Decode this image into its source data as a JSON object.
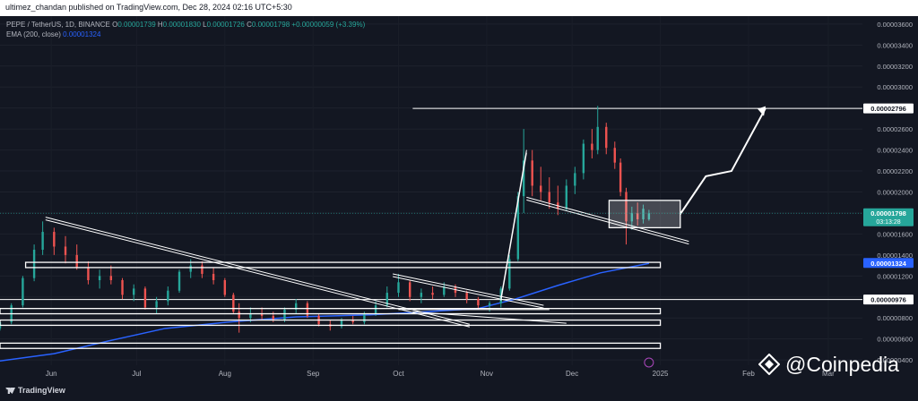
{
  "publisher_line": "ultimez_chandan published on TradingView.com, Dec 28, 2024 02:16 UTC+5:30",
  "legend": {
    "symbol": "PEPE / TetherUS, 1D, BINANCE",
    "open_label": "O",
    "open": "0.00001739",
    "high_label": "H",
    "high": "0.00001830",
    "low_label": "L",
    "low": "0.00001726",
    "close_label": "C",
    "close": "0.00001798",
    "change": "+0.00000059 (+3.39%)",
    "ema_label": "EMA (200, close)",
    "ema_value": "0.00001324"
  },
  "footer": {
    "brand": "TradingView",
    "watermark": "@Coinpedia"
  },
  "colors": {
    "background": "#131722",
    "up": "#26a69a",
    "down": "#ef5350",
    "ema": "#2962ff",
    "text": "#b2b5be",
    "white": "#ffffff"
  },
  "chart_data": {
    "type": "candlestick",
    "y_range": [
      3.5e-06,
      3.65e-05
    ],
    "y_ticks": [
      "0.00003600",
      "0.00003400",
      "0.00003200",
      "0.00003000",
      "0.00002800",
      "0.00002600",
      "0.00002400",
      "0.00002200",
      "0.00002000",
      "0.00001800",
      "0.00001600",
      "0.00001400",
      "0.00001200",
      "0.00001000",
      "0.00000800",
      "0.00000600",
      "0.00000400"
    ],
    "x_labels": [
      "Jun",
      "Jul",
      "Aug",
      "Sep",
      "Oct",
      "Nov",
      "Dec",
      "2025",
      "Feb",
      "Mar"
    ],
    "x_range": [
      "2024-05-13",
      "2025-03-12"
    ],
    "price_labels": [
      {
        "text": "0.00002796",
        "value": 2.796e-05,
        "style": "white"
      },
      {
        "text": "0.00001798",
        "value": 1.798e-05,
        "style": "green",
        "countdown": "03:13:28"
      },
      {
        "text": "0.00001324",
        "value": 1.324e-05,
        "style": "blue"
      },
      {
        "text": "0.00000976",
        "value": 9.76e-06,
        "style": "white"
      }
    ],
    "horizontal_lines": [
      2.796e-05,
      9.76e-06
    ],
    "ema_200": [
      [
        "2024-05-13",
        3.9e-06
      ],
      [
        "2024-06-01",
        4.6e-06
      ],
      [
        "2024-06-20",
        5.8e-06
      ],
      [
        "2024-07-10",
        7e-06
      ],
      [
        "2024-08-01",
        7.6e-06
      ],
      [
        "2024-08-25",
        8.1e-06
      ],
      [
        "2024-09-20",
        8.3e-06
      ],
      [
        "2024-10-10",
        8.6e-06
      ],
      [
        "2024-10-28",
        8.9e-06
      ],
      [
        "2024-11-10",
        9.8e-06
      ],
      [
        "2024-11-25",
        1.11e-05
      ],
      [
        "2024-12-10",
        1.23e-05
      ],
      [
        "2024-12-27",
        1.32e-05
      ]
    ],
    "candles": [
      [
        "2024-05-13",
        7e-06,
        7.8e-06,
        6.8e-06,
        7.6e-06
      ],
      [
        "2024-05-17",
        7.6e-06,
        9.4e-06,
        7.4e-06,
        9.2e-06
      ],
      [
        "2024-05-21",
        9.2e-06,
        1.2e-05,
        9e-06,
        1.18e-05
      ],
      [
        "2024-05-25",
        1.18e-05,
        1.5e-05,
        1.15e-05,
        1.45e-05
      ],
      [
        "2024-05-28",
        1.45e-05,
        1.72e-05,
        1.4e-05,
        1.62e-05
      ],
      [
        "2024-06-01",
        1.62e-05,
        1.66e-05,
        1.4e-05,
        1.48e-05
      ],
      [
        "2024-06-05",
        1.48e-05,
        1.58e-05,
        1.32e-05,
        1.4e-05
      ],
      [
        "2024-06-09",
        1.4e-05,
        1.5e-05,
        1.26e-05,
        1.28e-05
      ],
      [
        "2024-06-13",
        1.28e-05,
        1.34e-05,
        1.12e-05,
        1.16e-05
      ],
      [
        "2024-06-17",
        1.16e-05,
        1.26e-05,
        1.08e-05,
        1.2e-05
      ],
      [
        "2024-06-21",
        1.2e-05,
        1.3e-05,
        1.12e-05,
        1.16e-05
      ],
      [
        "2024-06-25",
        1.16e-05,
        1.18e-05,
        9.8e-06,
        1.02e-05
      ],
      [
        "2024-06-29",
        1.02e-05,
        1.12e-05,
        9.6e-06,
        1.08e-05
      ],
      [
        "2024-07-03",
        1.08e-05,
        1.1e-05,
        8.8e-06,
        9e-06
      ],
      [
        "2024-07-07",
        9e-06,
        1e-05,
        8.4e-06,
        9.6e-06
      ],
      [
        "2024-07-11",
        9.6e-06,
        1.1e-05,
        9.2e-06,
        1.06e-05
      ],
      [
        "2024-07-15",
        1.06e-05,
        1.26e-05,
        1.04e-05,
        1.24e-05
      ],
      [
        "2024-07-19",
        1.24e-05,
        1.36e-05,
        1.18e-05,
        1.3e-05
      ],
      [
        "2024-07-23",
        1.3e-05,
        1.34e-05,
        1.18e-05,
        1.22e-05
      ],
      [
        "2024-07-27",
        1.22e-05,
        1.28e-05,
        1.12e-05,
        1.16e-05
      ],
      [
        "2024-07-31",
        1.16e-05,
        1.18e-05,
        1e-05,
        1.02e-05
      ],
      [
        "2024-08-03",
        1.02e-05,
        1.04e-05,
        8.4e-06,
        8.6e-06
      ],
      [
        "2024-08-05",
        8.6e-06,
        9.4e-06,
        6.6e-06,
        8e-06
      ],
      [
        "2024-08-09",
        8e-06,
        9e-06,
        7.6e-06,
        8.4e-06
      ],
      [
        "2024-08-13",
        8.4e-06,
        9e-06,
        7.8e-06,
        8.2e-06
      ],
      [
        "2024-08-17",
        8.2e-06,
        8.6e-06,
        7.6e-06,
        7.8e-06
      ],
      [
        "2024-08-21",
        7.8e-06,
        9e-06,
        7.6e-06,
        8.8e-06
      ],
      [
        "2024-08-25",
        8.8e-06,
        9.8e-06,
        8.4e-06,
        9.4e-06
      ],
      [
        "2024-08-29",
        9.4e-06,
        9.6e-06,
        8e-06,
        8.2e-06
      ],
      [
        "2024-09-02",
        8.2e-06,
        8.4e-06,
        7.2e-06,
        7.4e-06
      ],
      [
        "2024-09-06",
        7.4e-06,
        7.8e-06,
        6.8e-06,
        7.2e-06
      ],
      [
        "2024-09-10",
        7.2e-06,
        8e-06,
        7e-06,
        7.8e-06
      ],
      [
        "2024-09-14",
        7.8e-06,
        8.2e-06,
        7.4e-06,
        7.6e-06
      ],
      [
        "2024-09-18",
        7.6e-06,
        8.6e-06,
        7.4e-06,
        8.4e-06
      ],
      [
        "2024-09-22",
        8.4e-06,
        9.6e-06,
        8.2e-06,
        9.2e-06
      ],
      [
        "2024-09-26",
        9.2e-06,
        1.1e-05,
        9e-06,
        1.04e-05
      ],
      [
        "2024-09-30",
        1.04e-05,
        1.22e-05,
        1e-05,
        1.14e-05
      ],
      [
        "2024-10-04",
        1.14e-05,
        1.16e-05,
        9.6e-06,
        1e-05
      ],
      [
        "2024-10-08",
        1e-05,
        1.08e-05,
        9.4e-06,
        1.04e-05
      ],
      [
        "2024-10-12",
        1.04e-05,
        1.1e-05,
        9.8e-06,
        1.02e-05
      ],
      [
        "2024-10-16",
        1.02e-05,
        1.14e-05,
        1e-05,
        1.1e-05
      ],
      [
        "2024-10-20",
        1.1e-05,
        1.12e-05,
        1e-05,
        1.04e-05
      ],
      [
        "2024-10-24",
        1.04e-05,
        1.06e-05,
        9.4e-06,
        9.8e-06
      ],
      [
        "2024-10-28",
        9.8e-06,
        1e-05,
        8.8e-06,
        9.2e-06
      ],
      [
        "2024-11-01",
        9.2e-06,
        9.6e-06,
        8.6e-06,
        9.4e-06
      ],
      [
        "2024-11-05",
        9.4e-06,
        1.1e-05,
        9e-06,
        1.08e-05
      ],
      [
        "2024-11-08",
        1.08e-05,
        1.4e-05,
        1.06e-05,
        1.36e-05
      ],
      [
        "2024-11-11",
        1.36e-05,
        2e-05,
        1.34e-05,
        1.96e-05
      ],
      [
        "2024-11-13",
        1.96e-05,
        2.6e-05,
        1.8e-05,
        2.3e-05
      ],
      [
        "2024-11-16",
        2.3e-05,
        2.4e-05,
        1.96e-05,
        2.06e-05
      ],
      [
        "2024-11-19",
        2.06e-05,
        2.24e-05,
        1.92e-05,
        2e-05
      ],
      [
        "2024-11-22",
        2e-05,
        2.14e-05,
        1.84e-05,
        1.9e-05
      ],
      [
        "2024-11-25",
        1.9e-05,
        2.06e-05,
        1.78e-05,
        1.84e-05
      ],
      [
        "2024-11-28",
        1.84e-05,
        2.12e-05,
        1.82e-05,
        2.06e-05
      ],
      [
        "2024-12-01",
        2.06e-05,
        2.24e-05,
        1.98e-05,
        2.18e-05
      ],
      [
        "2024-12-04",
        2.18e-05,
        2.5e-05,
        2.12e-05,
        2.46e-05
      ],
      [
        "2024-12-07",
        2.46e-05,
        2.6e-05,
        2.32e-05,
        2.4e-05
      ],
      [
        "2024-12-09",
        2.4e-05,
        2.82e-05,
        2.36e-05,
        2.62e-05
      ],
      [
        "2024-12-12",
        2.62e-05,
        2.66e-05,
        2.36e-05,
        2.42e-05
      ],
      [
        "2024-12-15",
        2.42e-05,
        2.48e-05,
        2.22e-05,
        2.28e-05
      ],
      [
        "2024-12-17",
        2.28e-05,
        2.32e-05,
        1.96e-05,
        2e-05
      ],
      [
        "2024-12-19",
        2e-05,
        2.04e-05,
        1.5e-05,
        1.72e-05
      ],
      [
        "2024-12-21",
        1.72e-05,
        1.86e-05,
        1.64e-05,
        1.8e-05
      ],
      [
        "2024-12-23",
        1.8e-05,
        1.9e-05,
        1.68e-05,
        1.74e-05
      ],
      [
        "2024-12-25",
        1.74e-05,
        1.88e-05,
        1.7e-05,
        1.84e-05
      ],
      [
        "2024-12-27",
        1.739e-05,
        1.83e-05,
        1.726e-05,
        1.798e-05
      ]
    ]
  }
}
